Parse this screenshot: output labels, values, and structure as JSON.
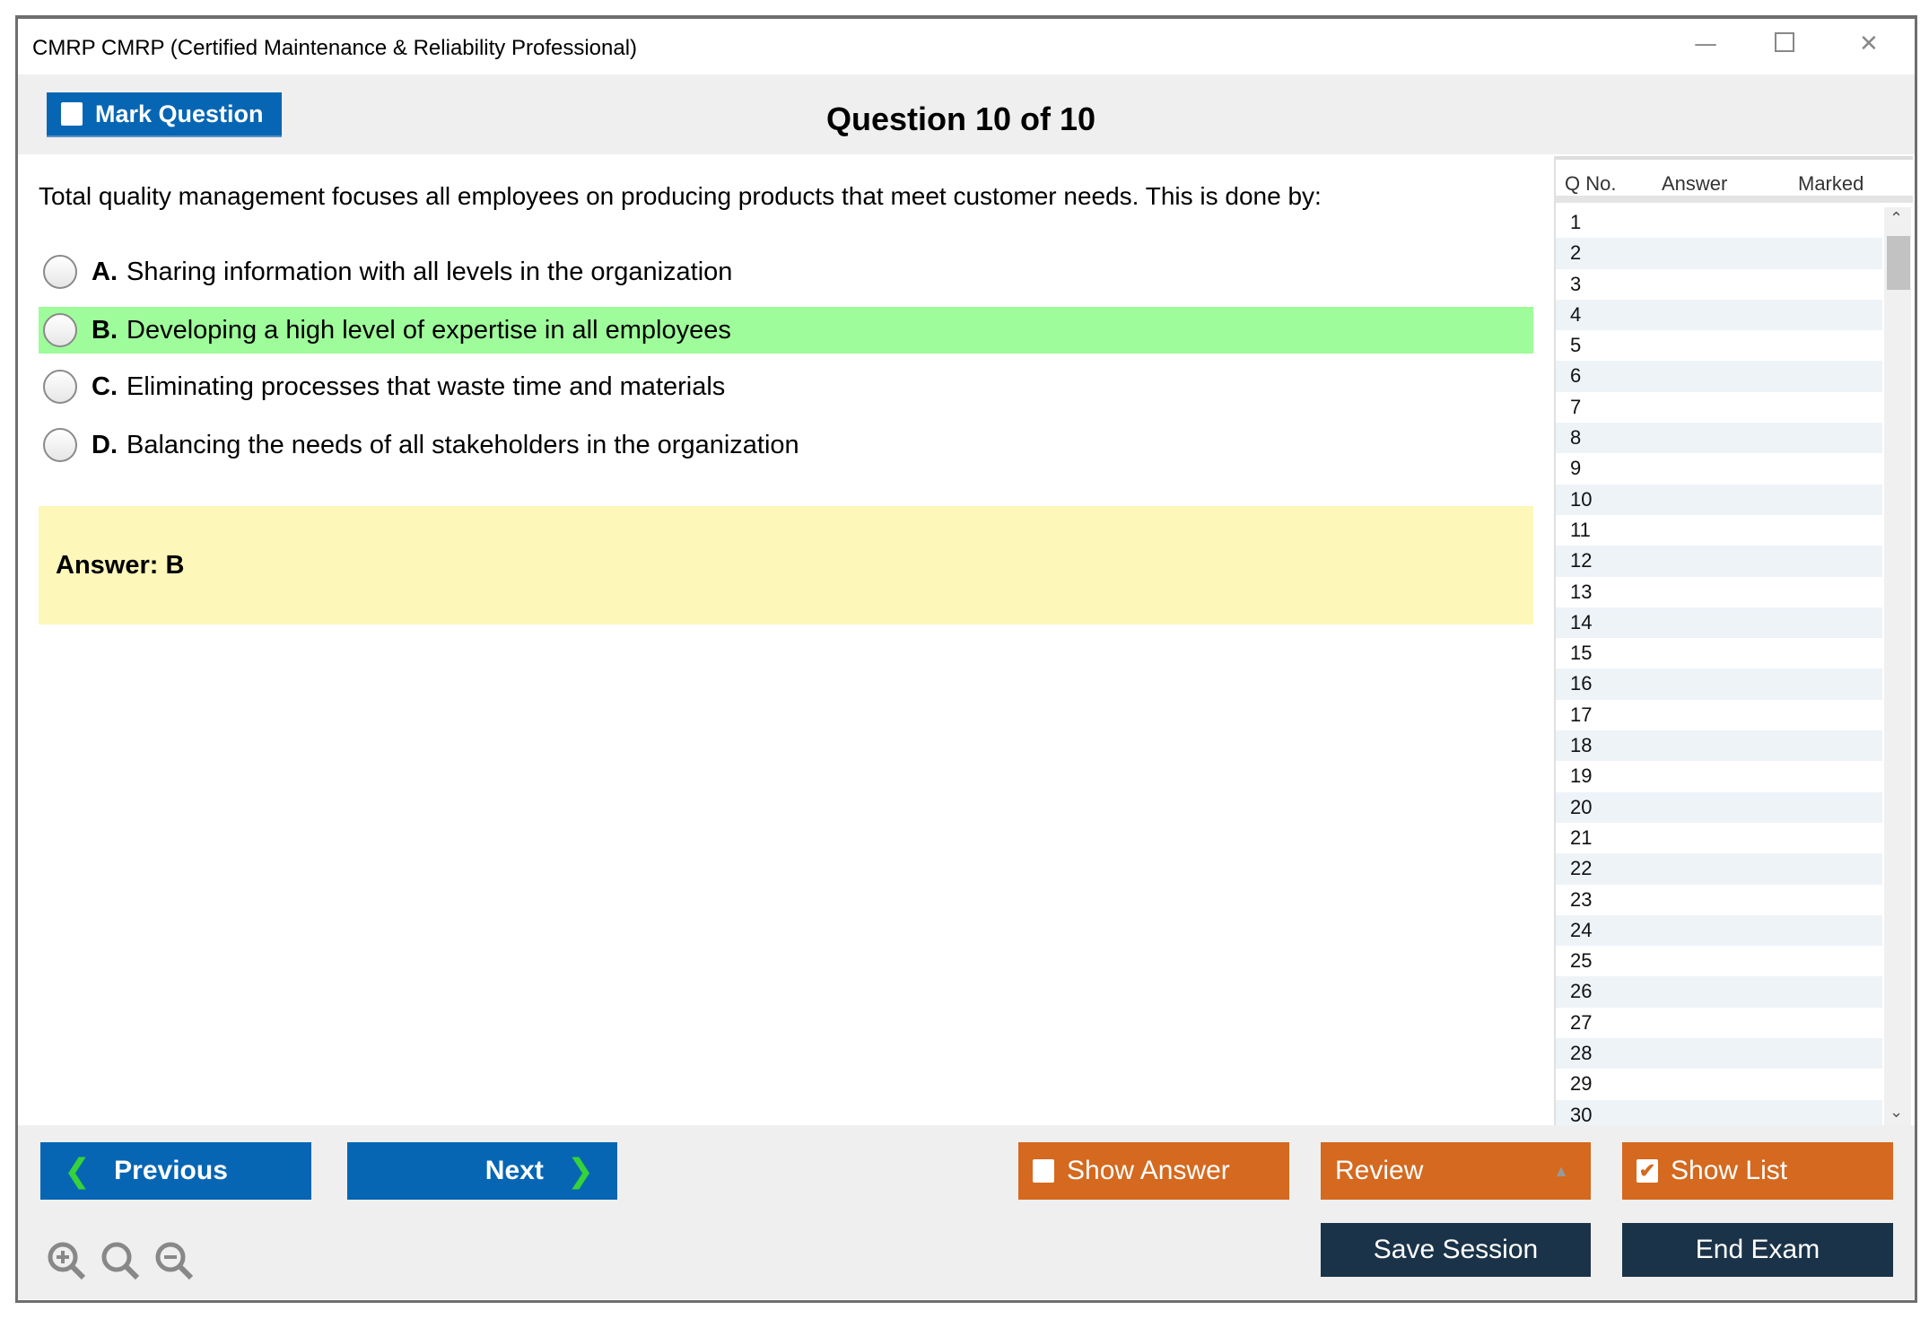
{
  "window": {
    "title": "CMRP CMRP (Certified Maintenance & Reliability Professional)",
    "controls": [
      "minimize-icon",
      "maximize-icon",
      "close-icon"
    ]
  },
  "toolbar": {
    "mark_label": "Mark Question",
    "mark_checked": false,
    "question_title": "Question 10 of 10"
  },
  "question": {
    "text": "Total quality management focuses all employees on producing products that meet customer needs. This is done by:",
    "options": [
      {
        "letter": "A.",
        "text": "Sharing information with all levels in the organization",
        "highlighted": false
      },
      {
        "letter": "B.",
        "text": "Developing a high level of expertise in all employees",
        "highlighted": true
      },
      {
        "letter": "C.",
        "text": "Eliminating processes that waste time and materials",
        "highlighted": false
      },
      {
        "letter": "D.",
        "text": "Balancing the needs of all stakeholders in the organization",
        "highlighted": false
      }
    ],
    "answer": "Answer: B"
  },
  "list": {
    "headers": [
      "Q No.",
      "Answer",
      "Marked"
    ],
    "rows": [
      "1",
      "2",
      "3",
      "4",
      "5",
      "6",
      "7",
      "8",
      "9",
      "10",
      "11",
      "12",
      "13",
      "14",
      "15",
      "16",
      "17",
      "18",
      "19",
      "20",
      "21",
      "22",
      "23",
      "24",
      "25",
      "26",
      "27",
      "28",
      "29",
      "30"
    ]
  },
  "footer": {
    "previous": "Previous",
    "next": "Next",
    "show_answer": "Show Answer",
    "show_answer_checked": false,
    "review": "Review",
    "show_list": "Show List",
    "show_list_checked": true,
    "save_session": "Save Session",
    "end_exam": "End Exam",
    "zoom_icons": [
      "zoom-in-icon",
      "zoom-reset-icon",
      "zoom-out-icon"
    ]
  },
  "colors": {
    "blue": "#0766b4",
    "orange": "#d4691f",
    "navy": "#1b3348",
    "correct": "#9efc9a",
    "answer_bg": "#fdf7b9"
  }
}
